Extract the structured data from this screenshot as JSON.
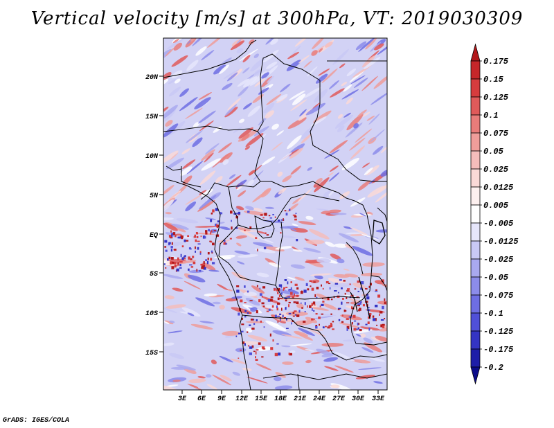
{
  "title": "Vertical velocity [m/s] at 300hPa, VT: 2019030309",
  "footer": "GrADS: IGES/COLA",
  "map": {
    "lat_labels": [
      "20N",
      "15N",
      "10N",
      "5N",
      "EQ",
      "5S",
      "10S",
      "15S"
    ],
    "lon_labels": [
      "3E",
      "6E",
      "9E",
      "12E",
      "15E",
      "18E",
      "21E",
      "24E",
      "27E",
      "30E",
      "33E"
    ]
  },
  "colorbar": {
    "labels": [
      "0.175",
      "0.15",
      "0.125",
      "0.1",
      "0.075",
      "0.05",
      "0.025",
      "0.0125",
      "0.005",
      "-0.005",
      "-0.0125",
      "-0.025",
      "-0.05",
      "-0.075",
      "-0.1",
      "-0.125",
      "-0.175",
      "-0.2"
    ],
    "colors": [
      "#b2181b",
      "#c6262a",
      "#d63c3e",
      "#e05a5a",
      "#e97c7a",
      "#ef9d9a",
      "#f5bdbb",
      "#fad9d7",
      "#fdf0ef",
      "#ffffff",
      "#e6e6fb",
      "#c9c9f5",
      "#a9a9ef",
      "#8c8cea",
      "#6e6ee3",
      "#5050d8",
      "#3434c4",
      "#1e1ea8",
      "#0c0c8a"
    ]
  },
  "palette": {
    "red_hi": "#b2181b",
    "blue_hi": "#0c0c8a",
    "border": "#000000"
  }
}
